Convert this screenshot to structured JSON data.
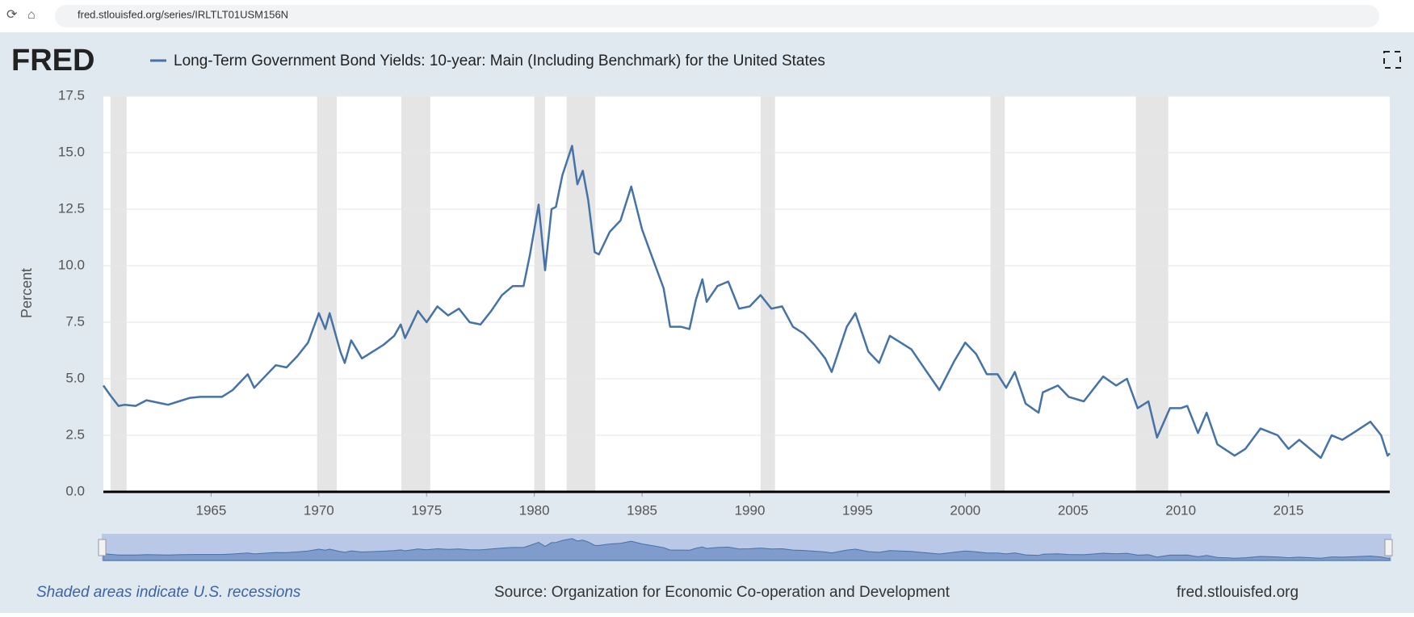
{
  "browser": {
    "url": "fred.stlouisfed.org/series/IRLTLT01USM156N"
  },
  "logo": "FRED",
  "chart_data": {
    "type": "line",
    "title": "Long-Term Government Bond Yields: 10-year: Main (Including Benchmark) for the United States",
    "y_label": "Percent",
    "series": [
      {
        "name": "Long-Term Government Bond Yields: 10-year: Main (Including Benchmark) for the United States",
        "color": "#4572a7",
        "x": [
          1960.0,
          1960.3,
          1960.7,
          1961.0,
          1961.5,
          1962.0,
          1962.5,
          1963.0,
          1963.5,
          1964.0,
          1964.5,
          1965.0,
          1965.5,
          1966.0,
          1966.7,
          1967.0,
          1967.5,
          1968.0,
          1968.5,
          1969.0,
          1969.5,
          1970.0,
          1970.3,
          1970.5,
          1971.0,
          1971.2,
          1971.5,
          1972.0,
          1972.5,
          1973.0,
          1973.5,
          1973.8,
          1974.0,
          1974.6,
          1975.0,
          1975.5,
          1976.0,
          1976.5,
          1977.0,
          1977.5,
          1978.0,
          1978.5,
          1979.0,
          1979.5,
          1979.8,
          1980.2,
          1980.5,
          1980.8,
          1981.0,
          1981.3,
          1981.75,
          1982.0,
          1982.25,
          1982.5,
          1982.8,
          1983.0,
          1983.5,
          1984.0,
          1984.5,
          1985.0,
          1985.5,
          1986.0,
          1986.3,
          1986.8,
          1987.2,
          1987.5,
          1987.8,
          1988.0,
          1988.5,
          1989.0,
          1989.5,
          1990.0,
          1990.5,
          1991.0,
          1991.5,
          1992.0,
          1992.5,
          1993.0,
          1993.5,
          1993.8,
          1994.5,
          1994.9,
          1995.5,
          1996.0,
          1996.5,
          1997.0,
          1997.5,
          1998.0,
          1998.8,
          1999.5,
          2000.0,
          2000.5,
          2001.0,
          2001.5,
          2001.9,
          2002.3,
          2002.8,
          2003.4,
          2003.6,
          2004.3,
          2004.8,
          2005.5,
          2006.4,
          2007.0,
          2007.5,
          2008.0,
          2008.5,
          2008.9,
          2009.5,
          2010.0,
          2010.3,
          2010.8,
          2011.2,
          2011.7,
          2012.5,
          2013.0,
          2013.7,
          2014.5,
          2015.0,
          2015.5,
          2016.5,
          2017.0,
          2017.5,
          2018.0,
          2018.8,
          2019.3,
          2019.6,
          2019.7
        ],
        "values": [
          4.7,
          4.3,
          3.8,
          3.85,
          3.8,
          4.05,
          3.95,
          3.85,
          4.0,
          4.15,
          4.2,
          4.2,
          4.2,
          4.5,
          5.2,
          4.6,
          5.1,
          5.6,
          5.5,
          6.0,
          6.6,
          7.9,
          7.2,
          7.9,
          6.2,
          5.7,
          6.7,
          5.9,
          6.2,
          6.5,
          6.9,
          7.4,
          6.8,
          8.0,
          7.5,
          8.2,
          7.8,
          8.1,
          7.5,
          7.4,
          8.0,
          8.7,
          9.1,
          9.1,
          10.5,
          12.7,
          9.8,
          12.5,
          12.6,
          14.0,
          15.3,
          13.6,
          14.2,
          12.9,
          10.6,
          10.5,
          11.5,
          12.0,
          13.5,
          11.6,
          10.3,
          9.0,
          7.3,
          7.3,
          7.2,
          8.5,
          9.4,
          8.4,
          9.1,
          9.3,
          8.1,
          8.2,
          8.7,
          8.1,
          8.2,
          7.3,
          7.0,
          6.5,
          5.9,
          5.3,
          7.3,
          7.9,
          6.2,
          5.7,
          6.9,
          6.6,
          6.3,
          5.6,
          4.5,
          5.8,
          6.6,
          6.1,
          5.2,
          5.2,
          4.6,
          5.3,
          3.9,
          3.5,
          4.4,
          4.7,
          4.2,
          4.0,
          5.1,
          4.7,
          5.0,
          3.7,
          4.0,
          2.4,
          3.7,
          3.7,
          3.8,
          2.6,
          3.5,
          2.1,
          1.6,
          1.9,
          2.8,
          2.5,
          1.9,
          2.3,
          1.5,
          2.5,
          2.3,
          2.6,
          3.1,
          2.5,
          1.6,
          1.7
        ]
      }
    ],
    "recessions": [
      [
        1960.33,
        1961.08
      ],
      [
        1969.92,
        1970.83
      ],
      [
        1973.83,
        1975.17
      ],
      [
        1980.0,
        1980.5
      ],
      [
        1981.5,
        1982.83
      ],
      [
        1990.5,
        1991.17
      ],
      [
        2001.17,
        2001.83
      ],
      [
        2007.92,
        2009.42
      ]
    ],
    "xlim": [
      1960,
      2019.7
    ],
    "xticks": [
      1965,
      1970,
      1975,
      1980,
      1985,
      1990,
      1995,
      2000,
      2005,
      2010,
      2015
    ],
    "ylim": [
      0,
      17.5
    ],
    "yticks": [
      {
        "value": 0,
        "label": "0.0"
      },
      {
        "value": 2.5,
        "label": "2.5"
      },
      {
        "value": 5,
        "label": "5.0"
      },
      {
        "value": 7.5,
        "label": "7.5"
      },
      {
        "value": 10,
        "label": "10.0"
      },
      {
        "value": 12.5,
        "label": "12.5"
      },
      {
        "value": 15,
        "label": "15.0"
      },
      {
        "value": 17.5,
        "label": "17.5"
      }
    ],
    "grid": true
  },
  "footer": {
    "note": "Shaded areas indicate U.S. recessions",
    "source": "Source: Organization for Economic Co-operation and Development",
    "site": "fred.stlouisfed.org"
  }
}
